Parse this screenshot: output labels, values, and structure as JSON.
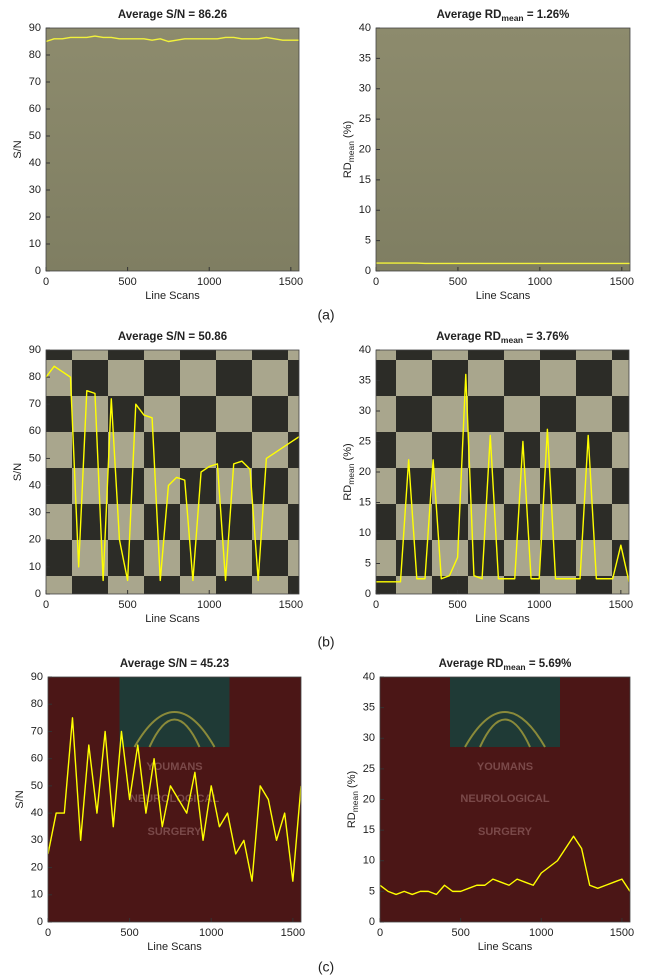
{
  "panel_labels": [
    "(a)",
    "(b)",
    "(c)"
  ],
  "chart_data": [
    {
      "type": "line",
      "title": "Average S/N = 86.26",
      "xlabel": "Line Scans",
      "ylabel": "S/N",
      "color": "#f2f23a",
      "x": [
        0,
        50,
        100,
        150,
        200,
        250,
        300,
        350,
        400,
        450,
        500,
        550,
        600,
        650,
        700,
        750,
        800,
        850,
        900,
        950,
        1000,
        1050,
        1100,
        1150,
        1200,
        1250,
        1300,
        1350,
        1400,
        1450,
        1500,
        1550
      ],
      "values": [
        85,
        86,
        86,
        86.5,
        86.5,
        86.5,
        87,
        86.5,
        86.5,
        86,
        86,
        86,
        86,
        85.5,
        86,
        85,
        85.5,
        86,
        86,
        86,
        86,
        86,
        86.5,
        86.5,
        86,
        86,
        86,
        86.5,
        86,
        85.5,
        85.5,
        85.5
      ],
      "xlim": [
        0,
        1550
      ],
      "ylim": [
        0,
        90
      ],
      "xticks": [
        0,
        500,
        1000,
        1500
      ],
      "yticks": [
        0,
        10,
        20,
        30,
        40,
        50,
        60,
        70,
        80,
        90
      ]
    },
    {
      "type": "line",
      "title": [
        "Average RD",
        "mean",
        " = 1.26%"
      ],
      "xlabel": "Line Scans",
      "ylabel": [
        "RD",
        "mean",
        " (%)"
      ],
      "color": "#f2f23a",
      "x": [
        0,
        50,
        100,
        150,
        200,
        250,
        300,
        350,
        400,
        450,
        500,
        550,
        600,
        650,
        700,
        750,
        800,
        850,
        900,
        950,
        1000,
        1050,
        1100,
        1150,
        1200,
        1250,
        1300,
        1350,
        1400,
        1450,
        1500,
        1550
      ],
      "values": [
        1.3,
        1.3,
        1.3,
        1.3,
        1.3,
        1.3,
        1.25,
        1.25,
        1.25,
        1.25,
        1.25,
        1.25,
        1.25,
        1.25,
        1.25,
        1.25,
        1.25,
        1.25,
        1.25,
        1.25,
        1.25,
        1.25,
        1.25,
        1.25,
        1.25,
        1.25,
        1.25,
        1.25,
        1.25,
        1.25,
        1.25,
        1.25
      ],
      "xlim": [
        0,
        1550
      ],
      "ylim": [
        0,
        40
      ],
      "xticks": [
        0,
        500,
        1000,
        1500
      ],
      "yticks": [
        0,
        5,
        10,
        15,
        20,
        25,
        30,
        35,
        40
      ]
    },
    {
      "type": "line",
      "title": "Average S/N = 50.86",
      "xlabel": "Line Scans",
      "ylabel": "S/N",
      "color": "#ffff00",
      "x": [
        0,
        50,
        100,
        150,
        200,
        250,
        300,
        350,
        400,
        450,
        500,
        550,
        600,
        650,
        700,
        750,
        800,
        850,
        900,
        950,
        1000,
        1050,
        1100,
        1150,
        1200,
        1250,
        1300,
        1350,
        1400,
        1450,
        1500,
        1550
      ],
      "values": [
        80,
        84,
        82,
        80,
        10,
        75,
        74,
        5,
        72,
        20,
        5,
        70,
        66,
        65,
        5,
        40,
        43,
        42,
        5,
        45,
        47,
        48,
        5,
        48,
        49,
        46,
        5,
        50,
        52,
        54,
        56,
        58
      ],
      "xlim": [
        0,
        1550
      ],
      "ylim": [
        0,
        90
      ],
      "xticks": [
        0,
        500,
        1000,
        1500
      ],
      "yticks": [
        0,
        10,
        20,
        30,
        40,
        50,
        60,
        70,
        80,
        90
      ]
    },
    {
      "type": "line",
      "title": [
        "Average RD",
        "mean",
        " = 3.76%"
      ],
      "xlabel": "Line Scans",
      "ylabel": [
        "RD",
        "mean",
        " (%)"
      ],
      "color": "#ffff00",
      "x": [
        0,
        50,
        100,
        150,
        200,
        250,
        300,
        350,
        400,
        450,
        500,
        550,
        600,
        650,
        700,
        750,
        800,
        850,
        900,
        950,
        1000,
        1050,
        1100,
        1150,
        1200,
        1250,
        1300,
        1350,
        1400,
        1450,
        1500,
        1550
      ],
      "values": [
        2,
        2,
        2,
        2,
        22,
        2.5,
        2.5,
        22,
        2.5,
        3,
        6,
        36,
        3,
        2.5,
        26,
        2.5,
        2.5,
        2.5,
        25,
        2.5,
        2.5,
        27,
        2.5,
        2.5,
        2.5,
        2.5,
        26,
        2.5,
        2.5,
        2.5,
        8,
        2
      ],
      "xlim": [
        0,
        1550
      ],
      "ylim": [
        0,
        40
      ],
      "xticks": [
        0,
        500,
        1000,
        1500
      ],
      "yticks": [
        0,
        5,
        10,
        15,
        20,
        25,
        30,
        35,
        40
      ]
    },
    {
      "type": "line",
      "title": "Average S/N = 45.23",
      "xlabel": "Line Scans",
      "ylabel": "S/N",
      "color": "#ffff00",
      "image_text": [
        "YOUMANS",
        "NEUROLOGICAL",
        "SURGERY"
      ],
      "x": [
        0,
        50,
        100,
        150,
        200,
        250,
        300,
        350,
        400,
        450,
        500,
        550,
        600,
        650,
        700,
        750,
        800,
        850,
        900,
        950,
        1000,
        1050,
        1100,
        1150,
        1200,
        1250,
        1300,
        1350,
        1400,
        1450,
        1500,
        1550
      ],
      "values": [
        25,
        40,
        40,
        75,
        30,
        65,
        40,
        70,
        35,
        70,
        45,
        65,
        40,
        60,
        35,
        50,
        45,
        40,
        55,
        30,
        50,
        35,
        40,
        25,
        30,
        15,
        50,
        45,
        30,
        40,
        15,
        50
      ],
      "xlim": [
        0,
        1550
      ],
      "ylim": [
        0,
        90
      ],
      "xticks": [
        0,
        500,
        1000,
        1500
      ],
      "yticks": [
        0,
        10,
        20,
        30,
        40,
        50,
        60,
        70,
        80,
        90
      ]
    },
    {
      "type": "line",
      "title": [
        "Average RD",
        "mean",
        " = 5.69%"
      ],
      "xlabel": "Line Scans",
      "ylabel": [
        "RD",
        "mean",
        " (%)"
      ],
      "color": "#ffff00",
      "image_text": [
        "YOUMANS",
        "NEUROLOGICAL",
        "SURGERY"
      ],
      "x": [
        0,
        50,
        100,
        150,
        200,
        250,
        300,
        350,
        400,
        450,
        500,
        550,
        600,
        650,
        700,
        750,
        800,
        850,
        900,
        950,
        1000,
        1050,
        1100,
        1150,
        1200,
        1250,
        1300,
        1350,
        1400,
        1450,
        1500,
        1550
      ],
      "values": [
        6,
        5,
        4.5,
        5,
        4.5,
        5,
        5,
        4.5,
        6,
        5,
        5,
        5.5,
        6,
        6,
        7,
        6.5,
        6,
        7,
        6.5,
        6,
        8,
        9,
        10,
        12,
        14,
        12,
        6,
        5.5,
        6,
        6.5,
        7,
        5
      ],
      "xlim": [
        0,
        1550
      ],
      "ylim": [
        0,
        40
      ],
      "xticks": [
        0,
        500,
        1000,
        1500
      ],
      "yticks": [
        0,
        5,
        10,
        15,
        20,
        25,
        30,
        35,
        40
      ]
    }
  ]
}
